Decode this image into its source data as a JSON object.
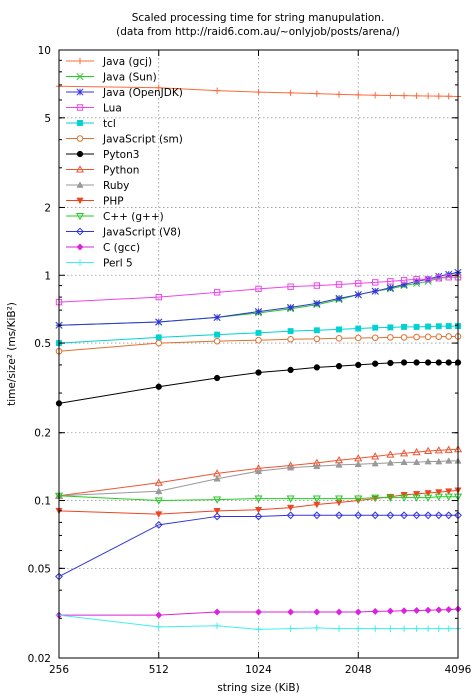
{
  "chart_data": {
    "type": "line",
    "title": "Scaled processing time for string manupulation.",
    "subtitle": "(data from http://raid6.com.au/~onlyjob/posts/arena/)",
    "xlabel": "string size (KiB)",
    "ylabel": "time/size² (ms/KiB²)",
    "x_scale": "log2",
    "y_scale": "log",
    "xlim": [
      256,
      4096
    ],
    "ylim": [
      0.02,
      10
    ],
    "x_ticks": [
      256,
      512,
      1024,
      2048,
      4096
    ],
    "x_tick_labels": [
      "256",
      "512",
      "1024",
      "2048",
      "4096"
    ],
    "y_ticks": [
      0.02,
      0.05,
      0.1,
      0.2,
      0.5,
      1,
      2,
      5,
      10
    ],
    "y_tick_labels": [
      "0.02",
      "0.05",
      "0.1",
      "0.2",
      "0.5",
      "1",
      "2",
      "5",
      "10"
    ],
    "grid": "dotted",
    "legend_position": "top-left",
    "x": [
      256,
      512,
      768,
      1024,
      1280,
      1536,
      1792,
      2048,
      2304,
      2560,
      2816,
      3072,
      3328,
      3584,
      3840,
      4096
    ],
    "series": [
      {
        "name": "Java (gcj)",
        "color": "#ff6a3d",
        "marker": "plus",
        "values": [
          6.9,
          6.8,
          6.6,
          6.5,
          6.45,
          6.4,
          6.35,
          6.32,
          6.3,
          6.28,
          6.27,
          6.26,
          6.25,
          6.24,
          6.23,
          6.22
        ]
      },
      {
        "name": "Java (Sun)",
        "color": "#22cc22",
        "marker": "x",
        "values": [
          0.6,
          0.62,
          0.65,
          0.68,
          0.71,
          0.74,
          0.78,
          0.82,
          0.85,
          0.87,
          0.9,
          0.92,
          0.94,
          0.97,
          0.99,
          1.0
        ]
      },
      {
        "name": "Java (OpenJDK)",
        "color": "#3333dd",
        "marker": "star",
        "values": [
          0.6,
          0.62,
          0.65,
          0.69,
          0.72,
          0.75,
          0.79,
          0.82,
          0.85,
          0.88,
          0.91,
          0.94,
          0.96,
          0.99,
          1.01,
          1.03
        ]
      },
      {
        "name": "Lua",
        "color": "#ee44ee",
        "marker": "square-open",
        "values": [
          0.76,
          0.8,
          0.84,
          0.87,
          0.89,
          0.9,
          0.91,
          0.92,
          0.93,
          0.94,
          0.95,
          0.96,
          0.96,
          0.97,
          0.98,
          0.98
        ]
      },
      {
        "name": "tcl",
        "color": "#00d2d2",
        "marker": "square",
        "values": [
          0.5,
          0.53,
          0.545,
          0.555,
          0.565,
          0.57,
          0.575,
          0.58,
          0.585,
          0.587,
          0.59,
          0.59,
          0.592,
          0.594,
          0.595,
          0.595
        ]
      },
      {
        "name": "JavaScript (sm)",
        "color": "#e07030",
        "marker": "circle-open",
        "values": [
          0.46,
          0.5,
          0.51,
          0.515,
          0.52,
          0.522,
          0.525,
          0.527,
          0.528,
          0.53,
          0.53,
          0.532,
          0.533,
          0.534,
          0.535,
          0.535
        ]
      },
      {
        "name": "Pyton3",
        "color": "#000000",
        "marker": "circle",
        "values": [
          0.27,
          0.32,
          0.35,
          0.37,
          0.38,
          0.39,
          0.395,
          0.4,
          0.405,
          0.408,
          0.41,
          0.41,
          0.41,
          0.41,
          0.41,
          0.41
        ]
      },
      {
        "name": "Python",
        "color": "#ee5533",
        "marker": "triangle-open",
        "values": [
          0.105,
          0.12,
          0.132,
          0.139,
          0.143,
          0.147,
          0.151,
          0.154,
          0.157,
          0.16,
          0.162,
          0.164,
          0.166,
          0.167,
          0.168,
          0.169
        ]
      },
      {
        "name": "Ruby",
        "color": "#999999",
        "marker": "triangle",
        "values": [
          0.105,
          0.11,
          0.125,
          0.135,
          0.14,
          0.142,
          0.144,
          0.145,
          0.146,
          0.147,
          0.148,
          0.148,
          0.149,
          0.149,
          0.15,
          0.15
        ]
      },
      {
        "name": "PHP",
        "color": "#ee4422",
        "marker": "triangle-down",
        "values": [
          0.09,
          0.087,
          0.09,
          0.091,
          0.093,
          0.096,
          0.098,
          0.1,
          0.102,
          0.104,
          0.106,
          0.107,
          0.108,
          0.109,
          0.11,
          0.111
        ]
      },
      {
        "name": "C++ (g++)",
        "color": "#22cc22",
        "marker": "triangle-down-open",
        "values": [
          0.105,
          0.1,
          0.101,
          0.102,
          0.102,
          0.102,
          0.102,
          0.102,
          0.103,
          0.103,
          0.103,
          0.103,
          0.103,
          0.104,
          0.104,
          0.104
        ]
      },
      {
        "name": "JavaScript (V8)",
        "color": "#3333dd",
        "marker": "diamond-open",
        "values": [
          0.046,
          0.078,
          0.085,
          0.085,
          0.086,
          0.086,
          0.086,
          0.086,
          0.086,
          0.086,
          0.086,
          0.086,
          0.086,
          0.086,
          0.086,
          0.086
        ]
      },
      {
        "name": "C (gcc)",
        "color": "#dd22dd",
        "marker": "diamond",
        "values": [
          0.031,
          0.031,
          0.032,
          0.032,
          0.032,
          0.032,
          0.032,
          0.032,
          0.0322,
          0.0323,
          0.0324,
          0.0325,
          0.0326,
          0.0327,
          0.0328,
          0.033
        ]
      },
      {
        "name": "Perl 5",
        "color": "#44eeee",
        "marker": "plus",
        "values": [
          0.031,
          0.0275,
          0.0278,
          0.0268,
          0.027,
          0.0272,
          0.027,
          0.027,
          0.027,
          0.027,
          0.027,
          0.027,
          0.027,
          0.027,
          0.027,
          0.027
        ]
      }
    ]
  }
}
